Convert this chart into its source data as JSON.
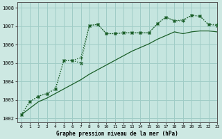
{
  "title": "Graphe pression niveau de la mer (hPa)",
  "background_color": "#cde8e2",
  "plot_bg_color": "#c5e5df",
  "grid_color": "#9fccc6",
  "line_color": "#1a5e28",
  "xlim": [
    -0.5,
    23
  ],
  "ylim": [
    1001.8,
    1008.3
  ],
  "yticks": [
    1002,
    1003,
    1004,
    1005,
    1006,
    1007,
    1008
  ],
  "xticks": [
    0,
    1,
    2,
    3,
    4,
    5,
    6,
    7,
    8,
    9,
    10,
    11,
    12,
    13,
    14,
    15,
    16,
    17,
    18,
    19,
    20,
    21,
    22,
    23
  ],
  "series1_x": [
    0,
    1,
    2,
    3,
    4,
    5,
    6,
    7,
    8,
    9,
    10,
    11,
    12,
    13,
    14,
    15,
    16,
    17,
    18,
    19,
    20,
    21,
    22,
    23
  ],
  "series1_y": [
    1002.2,
    1002.55,
    1002.9,
    1003.1,
    1003.35,
    1003.6,
    1003.85,
    1004.1,
    1004.4,
    1004.65,
    1004.9,
    1005.15,
    1005.4,
    1005.65,
    1005.85,
    1006.05,
    1006.3,
    1006.5,
    1006.7,
    1006.6,
    1006.7,
    1006.75,
    1006.75,
    1006.7
  ],
  "series2_x": [
    0,
    1,
    2,
    3,
    4,
    5,
    6,
    7,
    8,
    9,
    10,
    11,
    12,
    13,
    14,
    15,
    16,
    17,
    18,
    19,
    20,
    21,
    22,
    23
  ],
  "series2_y": [
    1002.2,
    1002.9,
    1003.2,
    1003.35,
    1003.6,
    1005.15,
    1005.15,
    1005.3,
    1007.05,
    1007.1,
    1006.6,
    1006.6,
    1006.65,
    1006.65,
    1006.65,
    1006.65,
    1007.15,
    1007.5,
    1007.3,
    1007.3,
    1007.6,
    1007.55,
    1007.1,
    1007.1
  ],
  "series3_x": [
    0,
    1,
    2,
    3,
    4,
    5,
    6,
    7,
    8,
    9,
    10,
    11,
    12,
    13,
    14,
    15,
    16,
    17,
    18,
    19,
    20,
    21,
    22,
    23
  ],
  "series3_y": [
    1002.2,
    1002.9,
    1003.2,
    1003.35,
    1003.6,
    1005.15,
    1005.15,
    1005.0,
    1007.05,
    1007.1,
    1006.6,
    1006.6,
    1006.65,
    1006.65,
    1006.65,
    1006.65,
    1007.15,
    1007.5,
    1007.3,
    1007.35,
    1007.6,
    1007.55,
    1007.1,
    1007.05
  ]
}
